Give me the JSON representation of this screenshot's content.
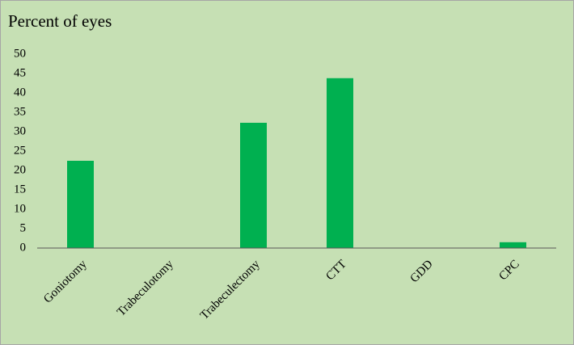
{
  "chart_data": {
    "type": "bar",
    "title": "Percent of eyes",
    "categories": [
      "Goniotomy",
      "Trabeculotomy",
      "Trabeculectomy",
      "CTT",
      "GDD",
      "CPC"
    ],
    "values": [
      22.5,
      0,
      32.3,
      43.8,
      0,
      1.5
    ],
    "color": "#00b050",
    "ylim": [
      0,
      50
    ],
    "yticks": [
      0,
      5,
      10,
      15,
      20,
      25,
      30,
      35,
      40,
      45,
      50
    ],
    "grid": false
  }
}
